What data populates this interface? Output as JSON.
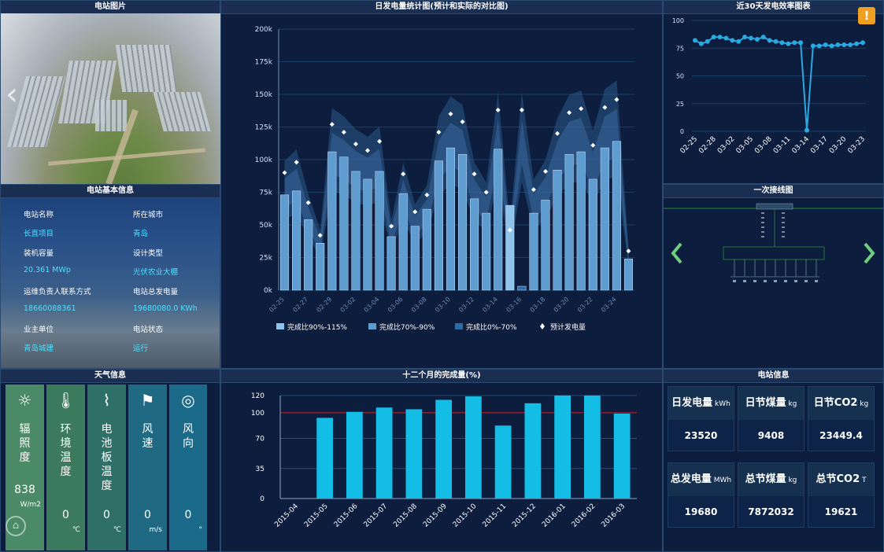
{
  "panels": {
    "photo_title": "电站图片",
    "info_title": "电站基本信息",
    "daily_title": "日发电量统计图(预计和实际的对比图)",
    "eff_title": "近30天发电效率图表",
    "wiring_title": "一次接线图",
    "weather_title": "天气信息",
    "monthly_title": "十二个月的完成量(%)",
    "power_title": "电站信息"
  },
  "station": {
    "name_label": "电站名称",
    "name": "长直项目",
    "city_label": "所在城市",
    "city": "青岛",
    "capacity_label": "装机容量",
    "capacity": "20.361 MWp",
    "design_label": "设计类型",
    "design": "光伏农业大棚",
    "contact_label": "运维负责人联系方式",
    "contact": "18660088361",
    "total_label": "电站总发电量",
    "total": "19680080.0 KWh",
    "owner_label": "业主单位",
    "owner": "青岛城建",
    "status_label": "电站状态",
    "status": "运行"
  },
  "weather": [
    {
      "name": "辐照度",
      "value": "838",
      "unit": "W/m2",
      "icon": "sun-icon",
      "color": "#4a8a66"
    },
    {
      "name": "环境温度",
      "value": "0",
      "unit": "℃",
      "icon": "thermometer-icon",
      "color": "#3c7a5e"
    },
    {
      "name": "电池板温度",
      "value": "0",
      "unit": "℃",
      "icon": "thermometer-slant-icon",
      "color": "#2e7068"
    },
    {
      "name": "风速",
      "value": "0",
      "unit": "m/s",
      "icon": "windsock-icon",
      "color": "#1f6a82"
    },
    {
      "name": "风向",
      "value": "0",
      "unit": "°",
      "icon": "compass-icon",
      "color": "#1c6a8a"
    }
  ],
  "power": [
    {
      "label": "日发电量",
      "unit": "kWh",
      "value": "23520"
    },
    {
      "label": "日节煤量",
      "unit": "kg",
      "value": "9408"
    },
    {
      "label": "日节CO2",
      "unit": "kg",
      "value": "23449.4"
    },
    {
      "label": "总发电量",
      "unit": "MWh",
      "value": "19680"
    },
    {
      "label": "总节煤量",
      "unit": "kg",
      "value": "7872032"
    },
    {
      "label": "总节CO2",
      "unit": "T",
      "value": "19621"
    }
  ],
  "chart_data": [
    {
      "type": "bar",
      "title": "日发电量统计图(预计和实际的对比图)",
      "ylim": [
        0,
        200000
      ],
      "yticks": [
        "0k",
        "25k",
        "50k",
        "75k",
        "100k",
        "125k",
        "150k",
        "175k",
        "200k"
      ],
      "xtick_labels": [
        "02-25",
        "02-27",
        "02-29",
        "03-02",
        "03-04",
        "03-06",
        "03-08",
        "03-10",
        "03-12",
        "03-14",
        "03-16",
        "03-18",
        "03-20",
        "03-22",
        "03-24"
      ],
      "legend": [
        "完成比90%-115%",
        "完成比70%-90%",
        "完成比0%-70%",
        "预计发电量"
      ],
      "series": [
        {
          "name": "实际发电量",
          "values": [
            73000,
            76000,
            54000,
            36000,
            106000,
            102000,
            91000,
            85000,
            91000,
            41000,
            74000,
            49000,
            62000,
            99000,
            109000,
            104000,
            70000,
            59000,
            108000,
            65000,
            3000,
            59000,
            69000,
            92000,
            104000,
            106000,
            85000,
            109000,
            114000,
            24000
          ]
        },
        {
          "name": "预计发电量",
          "values": [
            90000,
            98000,
            67000,
            42000,
            127000,
            121000,
            112000,
            107000,
            114000,
            49000,
            89000,
            60000,
            73000,
            121000,
            135000,
            129000,
            89000,
            75000,
            138000,
            46000,
            138000,
            77000,
            91000,
            120000,
            136000,
            139000,
            111000,
            140000,
            146000,
            30000
          ]
        }
      ]
    },
    {
      "type": "line",
      "title": "近30天发电效率图表",
      "ylim": [
        0,
        100
      ],
      "yticks": [
        "0",
        "25",
        "50",
        "75",
        "100"
      ],
      "xtick_labels": [
        "02-25",
        "02-28",
        "03-02",
        "03-05",
        "03-08",
        "03-11",
        "03-14",
        "03-17",
        "03-20",
        "03-23"
      ],
      "series": [
        {
          "values": [
            82,
            79,
            81,
            85,
            85,
            84,
            82,
            81,
            85,
            84,
            83,
            85,
            82,
            81,
            80,
            79,
            80,
            80,
            1,
            77,
            77,
            78,
            77,
            78,
            78,
            78,
            79,
            80
          ]
        }
      ]
    },
    {
      "type": "bar",
      "title": "十二个月的完成量(%)",
      "ylim": [
        0,
        120
      ],
      "yticks": [
        "0",
        "35",
        "70",
        "100",
        "120"
      ],
      "categories": [
        "2015-04",
        "2015-05",
        "2015-06",
        "2015-07",
        "2015-08",
        "2015-09",
        "2015-10",
        "2015-11",
        "2015-12",
        "2016-01",
        "2016-02",
        "2016-03"
      ],
      "values": [
        0,
        94,
        101,
        106,
        104,
        115,
        119,
        85,
        111,
        120,
        120,
        99
      ],
      "reference_line": 100
    }
  ]
}
